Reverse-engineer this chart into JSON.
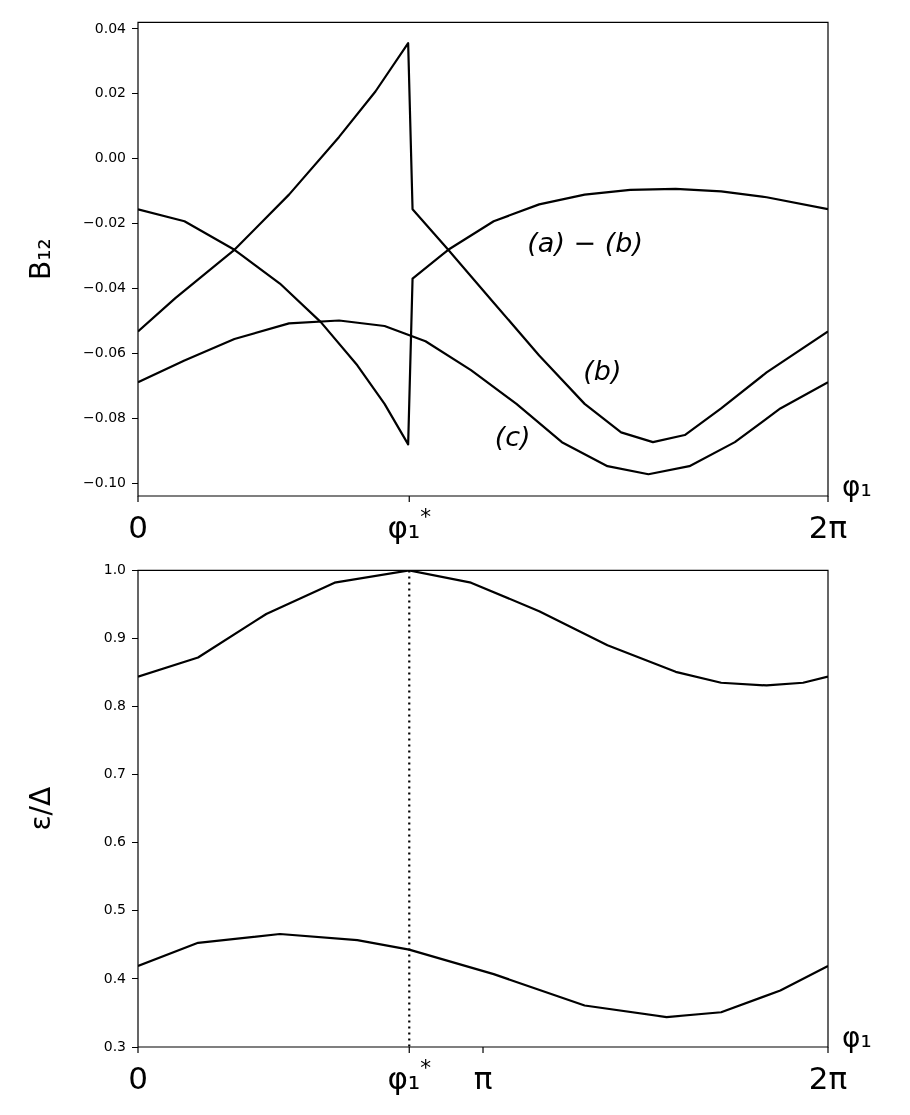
{
  "chart_data": [
    {
      "type": "line",
      "ylabel": "B₁₂",
      "xlabel": "φ₁",
      "xlim": [
        0,
        6.283
      ],
      "ylim": [
        -0.104,
        0.042
      ],
      "xticks": [
        0,
        {
          "value": 2.47,
          "label": "φ₁$^{*}$"
        },
        {
          "value": 6.283,
          "label": "2π"
        }
      ],
      "yticks": [
        {
          "value": -0.1,
          "label": "−0.10"
        },
        {
          "value": -0.08,
          "label": "−0.08"
        },
        {
          "value": -0.06,
          "label": "−0.06"
        },
        {
          "value": -0.04,
          "label": "−0.04"
        },
        {
          "value": -0.02,
          "label": "−0.02"
        },
        {
          "value": 0,
          "label": "0.00"
        },
        {
          "value": 0.02,
          "label": "0.02"
        },
        {
          "value": 0.04,
          "label": "0.04"
        }
      ],
      "grid": false,
      "legend": false,
      "marker": "none",
      "line_style": "solid",
      "series": [
        {
          "name": "(b)",
          "color": "#000000",
          "x": [
            0,
            0.34,
            0.878,
            1.375,
            1.831,
            2.162,
            2.46,
            2.5,
            2.825,
            3.239,
            3.653,
            4.067,
            4.399,
            4.689,
            4.979,
            5.31,
            5.724,
            6.283
          ],
          "values": [
            -0.0533,
            -0.043,
            -0.0281,
            -0.0111,
            0.0067,
            0.0207,
            0.0356,
            -0.0156,
            -0.0281,
            -0.0444,
            -0.0607,
            -0.0756,
            -0.0844,
            -0.0874,
            -0.0852,
            -0.077,
            -0.0659,
            -0.0533
          ]
        },
        {
          "name": "(a) − (b)",
          "color": "#000000",
          "x": [
            0,
            0.423,
            0.878,
            1.292,
            1.665,
            1.997,
            2.245,
            2.46,
            2.5,
            2.825,
            3.239,
            3.653,
            4.067,
            4.482,
            4.896,
            5.31,
            5.724,
            6.283
          ],
          "values": [
            -0.0156,
            -0.0193,
            -0.0281,
            -0.0385,
            -0.0504,
            -0.0637,
            -0.0756,
            -0.0881,
            -0.037,
            -0.0281,
            -0.0193,
            -0.0141,
            -0.0111,
            -0.0096,
            -0.0093,
            -0.0101,
            -0.0119,
            -0.0156
          ]
        },
        {
          "name": "(c)",
          "color": "#000000",
          "x": [
            0,
            0.423,
            0.878,
            1.375,
            1.831,
            2.245,
            2.618,
            3.032,
            3.446,
            3.86,
            4.275,
            4.648,
            5.021,
            5.435,
            5.849,
            6.283
          ],
          "values": [
            -0.0689,
            -0.0622,
            -0.0556,
            -0.0508,
            -0.0499,
            -0.0516,
            -0.0563,
            -0.0652,
            -0.0756,
            -0.0874,
            -0.0948,
            -0.0973,
            -0.0948,
            -0.0874,
            -0.077,
            -0.0689
          ]
        }
      ]
    },
    {
      "type": "line",
      "ylabel": "ε/Δ",
      "xlabel": "φ₁",
      "xlim": [
        0,
        6.283
      ],
      "ylim": [
        0.3,
        1.0
      ],
      "xticks": [
        0,
        {
          "value": 2.47,
          "label": "φ₁$^{*}$"
        },
        {
          "value": 3.1416,
          "label": "π"
        },
        {
          "value": 6.283,
          "label": "2π"
        }
      ],
      "yticks": [
        {
          "value": 0.3,
          "label": "0.3"
        },
        {
          "value": 0.4,
          "label": "0.4"
        },
        {
          "value": 0.5,
          "label": "0.5"
        },
        {
          "value": 0.6,
          "label": "0.6"
        },
        {
          "value": 0.7,
          "label": "0.7"
        },
        {
          "value": 0.8,
          "label": "0.8"
        },
        {
          "value": 0.9,
          "label": "0.9"
        },
        {
          "value": 1.0,
          "label": "1.0"
        }
      ],
      "grid": false,
      "legend": false,
      "marker": "none",
      "line_style": "solid",
      "ref_lines": [
        {
          "axis": "x",
          "value": 2.47,
          "color": "#000000",
          "line_style": "dotted"
        }
      ],
      "series": [
        {
          "color": "#000000",
          "x": [
            0,
            0.547,
            1.168,
            1.79,
            2.469,
            3.032,
            3.653,
            4.275,
            4.896,
            5.31,
            5.724,
            6.056,
            6.283
          ],
          "values": [
            0.844,
            0.872,
            0.936,
            0.982,
            1.0,
            0.982,
            0.94,
            0.89,
            0.851,
            0.835,
            0.831,
            0.835,
            0.844
          ]
        },
        {
          "color": "#000000",
          "x": [
            0,
            0.547,
            1.292,
            1.997,
            2.469,
            3.239,
            4.067,
            4.813,
            5.31,
            5.849,
            6.283
          ],
          "values": [
            0.419,
            0.453,
            0.466,
            0.457,
            0.443,
            0.407,
            0.361,
            0.344,
            0.351,
            0.383,
            0.419
          ]
        }
      ]
    }
  ]
}
